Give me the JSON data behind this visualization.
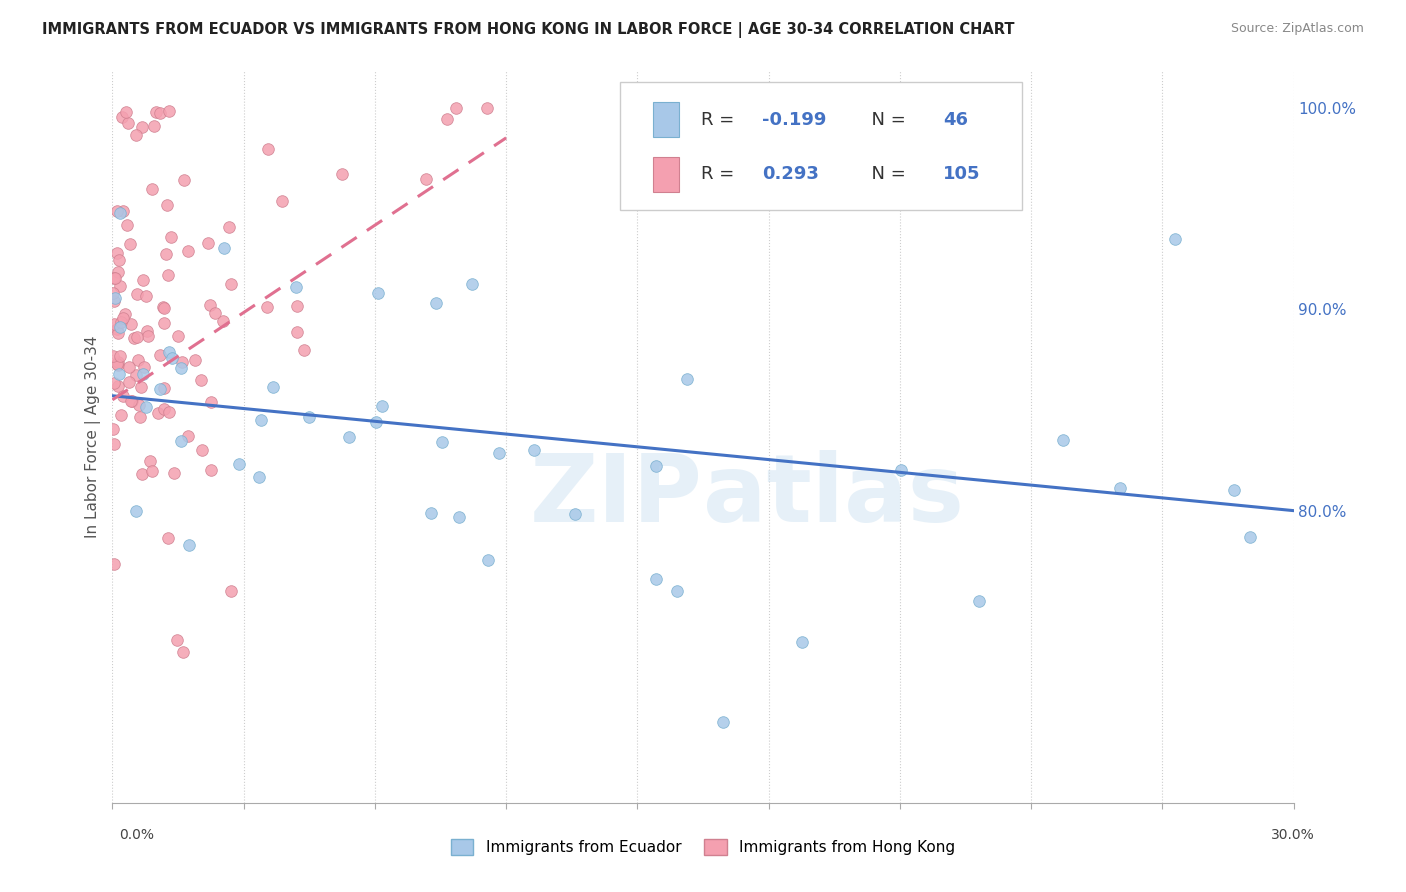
{
  "title": "IMMIGRANTS FROM ECUADOR VS IMMIGRANTS FROM HONG KONG IN LABOR FORCE | AGE 30-34 CORRELATION CHART",
  "source": "Source: ZipAtlas.com",
  "legend_label1": "Immigrants from Ecuador",
  "legend_label2": "Immigrants from Hong Kong",
  "R1": "-0.199",
  "N1": "46",
  "R2": "0.293",
  "N2": "105",
  "color_ecuador": "#a8c8e8",
  "color_hongkong": "#f4a0b0",
  "color_ecuador_line": "#4472c4",
  "color_hongkong_line": "#e07090",
  "watermark": "ZIPAtlas",
  "xmin": 0.0,
  "xmax": 0.3,
  "ymin": 0.655,
  "ymax": 1.018,
  "right_yticks": [
    0.8,
    0.9,
    1.0
  ],
  "right_yticklabels": [
    "80.0%",
    "90.0%",
    "100.0%"
  ],
  "xtick_labels_show": [
    "0.0%",
    "30.0%"
  ],
  "ylabel_label": "In Labor Force | Age 30-34"
}
